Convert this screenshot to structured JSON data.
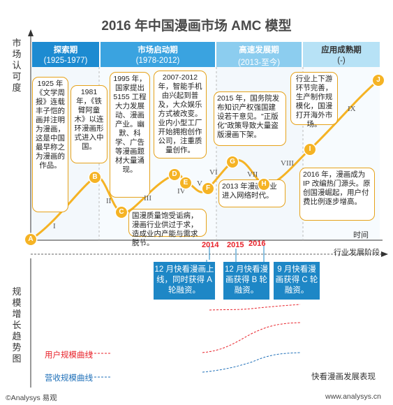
{
  "title": "2016 年中国漫画市场 AMC 模型",
  "y_axis_top": "市场认可度",
  "y_axis_bottom": "规模增长趋势图",
  "x_axis_time": "时间",
  "x_axis_stage": "行业发展阶段",
  "phases": [
    {
      "name": "探索期",
      "dates": "(1925-1977)"
    },
    {
      "name": "市场启动期",
      "dates": "(1978-2012)"
    },
    {
      "name": "高速发展期",
      "dates": "(2013-至今)"
    },
    {
      "name": "应用成熟期",
      "dates": "(-)"
    }
  ],
  "points": [
    "A",
    "B",
    "C",
    "D",
    "E",
    "F",
    "G",
    "H",
    "I",
    "J"
  ],
  "stages": [
    "I",
    "II",
    "III",
    "IV",
    "V",
    "VI",
    "VII",
    "VIII",
    "IX"
  ],
  "notes": {
    "a": "1925 年《文学周报》连载丰子恺的画并注明为漫画，这是中国最早称之为漫画的作品。",
    "b": "1981 年，《铁臂阿童木》以连环漫画形式进入中国。",
    "c": "1995 年，国家提出 5155 工程大力发展动、漫画产业。幽默、科学、广告等漫画题材大量涌现。",
    "d": "2007-2012 年，智能手机由兴起到普及，大众娱乐方式被改变。业内小型工厂开始拥抱创作公司，注重质量创作。",
    "e": "国漫质量饱受诟病，漫画行业供过于求，造成业内产能与需求脱节。",
    "f": "2013 年漫画行业进入网络时代。",
    "g": "2015 年，国务院发布知识产权强国建设若干意见。\"正版化\"政策导致大量盗版漫画下架。",
    "h": "2016 年，漫画成为 IP 改编热门源头。原创国漫崛起，用户付费比例逐步增高。",
    "i": "行业上下游环节完善，生产制作规模化，国漫打开海外市场。"
  },
  "years": [
    "2014",
    "2015",
    "2016"
  ],
  "funding": [
    "12 月快看漫画上线，同时获得 A 轮融资。",
    "12 月快看漫画获得 B 轮融资。",
    "9 月快看漫画获得 C 轮融资。"
  ],
  "legend": {
    "user": "用户规模曲线",
    "revenue": "营收规模曲线"
  },
  "bottom_right": "快看漫画发展表现",
  "footer_left": "©Analysys 易观",
  "footer_right": "www.analysys.cn",
  "colors": {
    "curve": "#f5b324",
    "point": "#f5b324",
    "phase_dark": "#1d8bd1",
    "phase_mid": "#3aa3e0",
    "phase_light": "#8ccdef",
    "phase_pale": "#b7e2f6",
    "funding": "#1e87c6",
    "user_curve": "#e8222a",
    "revenue_curve": "#1e6fb8",
    "year_red": "#e8222a"
  }
}
